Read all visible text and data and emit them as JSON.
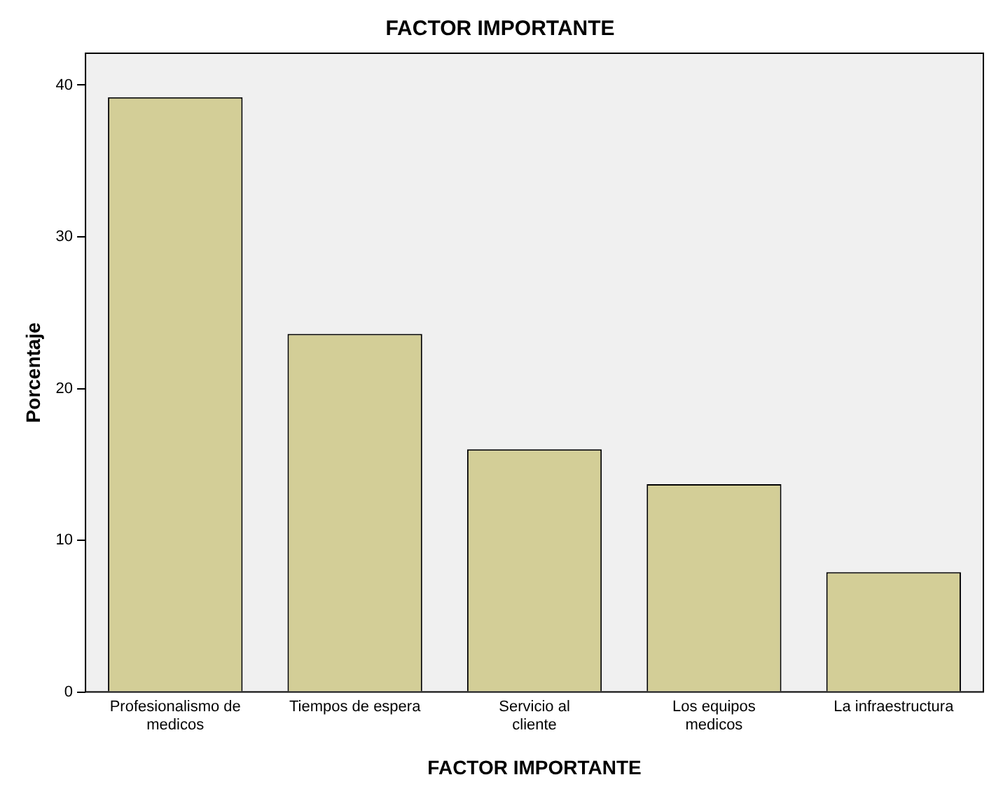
{
  "chart_data": {
    "type": "bar",
    "title": "FACTOR IMPORTANTE",
    "xlabel": "FACTOR IMPORTANTE",
    "ylabel": "Porcentaje",
    "categories": [
      "Profesionalismo de medicos",
      "Tiempos de espera",
      "Servicio al cliente",
      "Los equipos medicos",
      "La infraestructura"
    ],
    "values": [
      39.2,
      23.6,
      16.0,
      13.7,
      7.9
    ],
    "color": "#d3ce97",
    "ylim": [
      0,
      42.1
    ],
    "yticks": [
      0,
      10,
      20,
      30,
      40
    ],
    "grid": false,
    "legend": false
  }
}
